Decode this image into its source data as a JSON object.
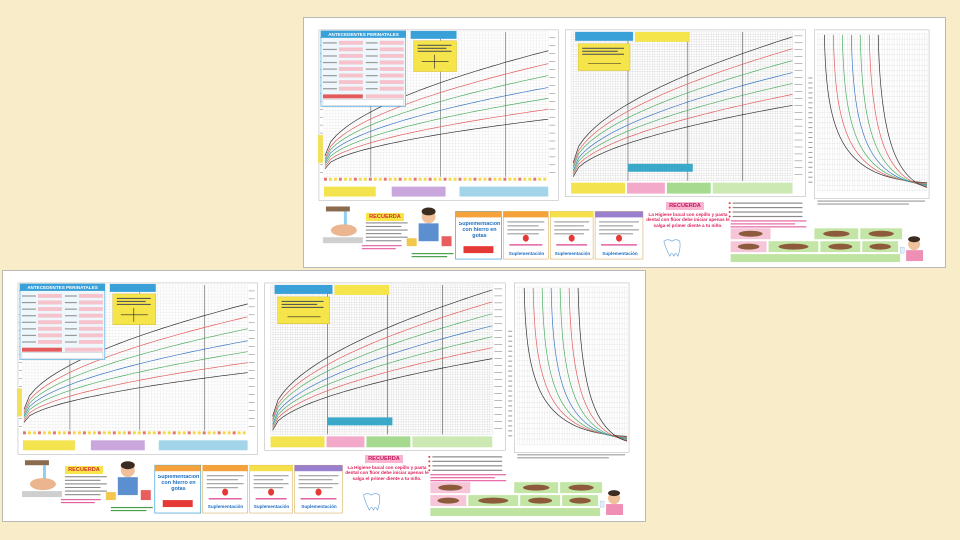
{
  "slide": {
    "background": "#f8edc8"
  },
  "cards": [
    {
      "perinatal_header": "ANTECEDENTES PERINATALES",
      "recuerda_left": "RECUERDA",
      "iron_drops": "Suplementación con hierro en gotas",
      "supplement_labels": [
        "Suplementación",
        "Suplementación",
        "Suplementación"
      ],
      "recuerda_right": "RECUERDA",
      "hygiene_text": "La Higiene bucal con cepillo y pasta dental con flúor debe iniciar apenas le salga el primer diente a tu niño."
    },
    {
      "perinatal_header": "ANTECEDENTES PERINATALES",
      "recuerda_left": "RECUERDA",
      "iron_drops": "Suplementación con hierro en gotas",
      "supplement_labels": [
        "Suplementación",
        "Suplementación",
        "Suplementación"
      ],
      "recuerda_right": "RECUERDA",
      "hygiene_text": "La Higiene bucal con cepillo y pasta dental con flúor debe iniciar apenas le salga el primer diente a tu niño."
    }
  ],
  "colors": {
    "curve_outer": "#333333",
    "curve_red": "#e35d5d",
    "curve_green": "#4fae63",
    "curve_median": "#3a78c2",
    "header_blue": "#3aa0d8",
    "form_field": "#f6c3cd",
    "band_yellow": "#f3e34f",
    "band_purple": "#c9a6dc",
    "band_blue": "#a3d5ea",
    "band_pink": "#f3a9c9",
    "band_green": "#a6db8f",
    "band_light_green": "#cde9b3"
  }
}
